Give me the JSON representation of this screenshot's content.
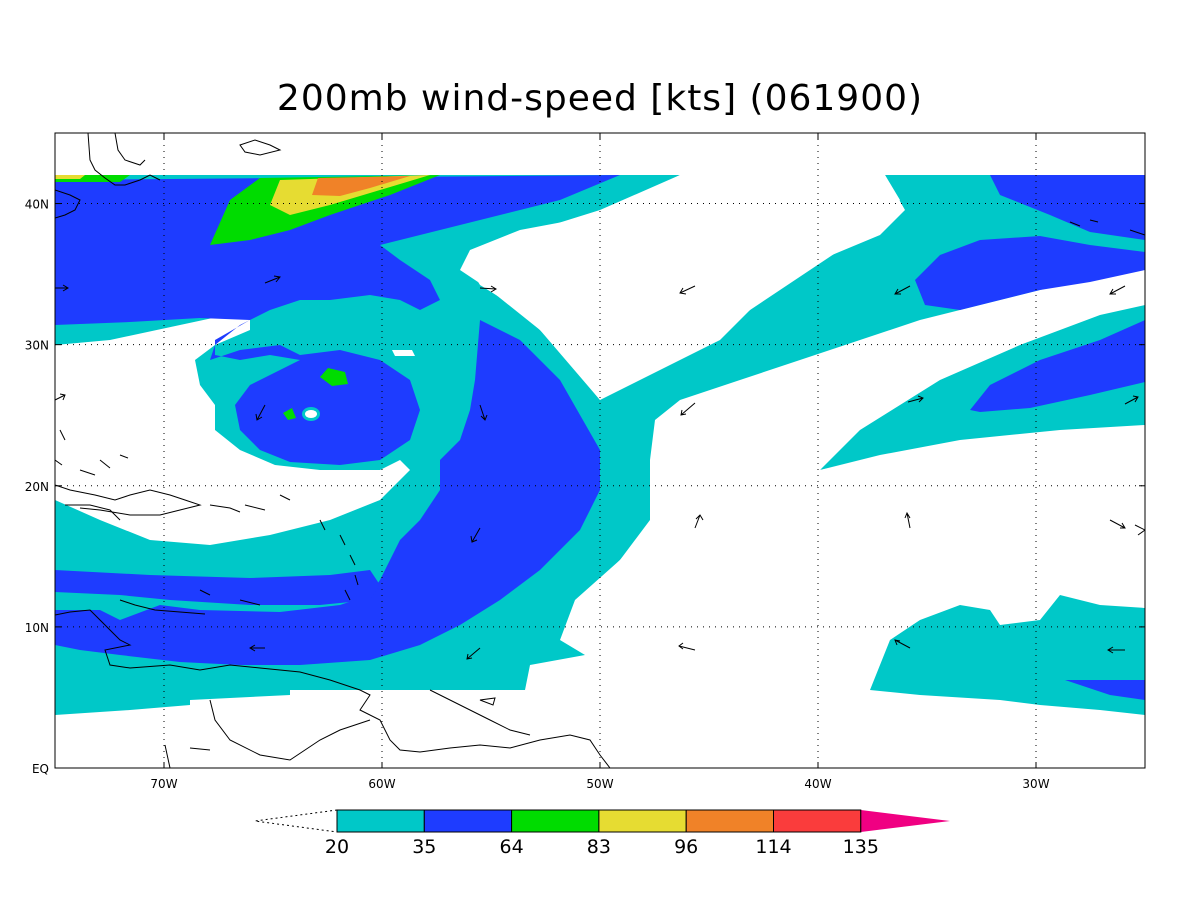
{
  "title": "200mb wind-speed [kts] (061900)",
  "axes": {
    "x_ticks": [
      "70W",
      "60W",
      "50W",
      "40W",
      "30W"
    ],
    "y_ticks": [
      "EQ",
      "10N",
      "20N",
      "30N",
      "40N"
    ],
    "lon_range": [
      -75,
      -25
    ],
    "lat_range": [
      0,
      45
    ]
  },
  "colorbar": {
    "levels": [
      "20",
      "35",
      "64",
      "83",
      "96",
      "114",
      "135"
    ],
    "colors": [
      "#00c8c8",
      "#1e3cff",
      "#00dc00",
      "#e6dc32",
      "#f08228",
      "#fa3c3c",
      "#f00082"
    ]
  }
}
